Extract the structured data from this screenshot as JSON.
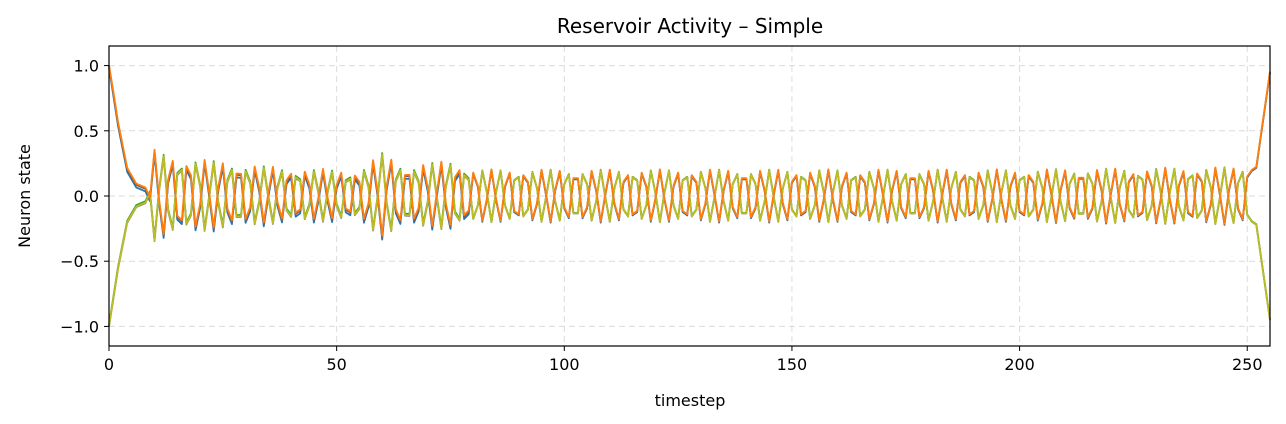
{
  "chart_data": {
    "type": "line",
    "title": "Reservoir Activity – Simple",
    "xlabel": "timestep",
    "ylabel": "Neuron state",
    "xlim": [
      0,
      255
    ],
    "ylim": [
      -1.15,
      1.15
    ],
    "xticks": [
      0,
      50,
      100,
      150,
      200,
      250
    ],
    "yticks": [
      1.0,
      0.5,
      0.0,
      -0.5,
      -1.0
    ],
    "ytick_labels": [
      "1.0",
      "0.5",
      "0.0",
      "−0.5",
      "−1.0"
    ],
    "grid": true,
    "grid_style": "dashed",
    "n_timesteps": 256,
    "series_colors": [
      "#1f77b4",
      "#8c564b",
      "#2ca02c",
      "#7f7f7f",
      "#bcbd22",
      "#ff7f0e"
    ],
    "series_phase": [
      1,
      1,
      -1,
      -1,
      -1,
      1
    ],
    "series_offset": [
      -0.015,
      0.005,
      0.01,
      -0.005,
      0.0,
      0.015
    ],
    "envelope": [
      [
        0,
        1.0
      ],
      [
        2,
        0.55
      ],
      [
        4,
        0.2
      ],
      [
        6,
        0.08
      ],
      [
        8,
        0.05
      ],
      [
        10,
        0.34
      ],
      [
        15,
        0.28
      ],
      [
        20,
        0.27
      ],
      [
        25,
        0.25
      ],
      [
        30,
        0.23
      ],
      [
        40,
        0.2
      ],
      [
        50,
        0.19
      ],
      [
        55,
        0.18
      ],
      [
        60,
        0.32
      ],
      [
        65,
        0.22
      ],
      [
        75,
        0.26
      ],
      [
        80,
        0.2
      ],
      [
        100,
        0.2
      ],
      [
        150,
        0.2
      ],
      [
        200,
        0.2
      ],
      [
        250,
        0.22
      ],
      [
        253,
        0.45
      ],
      [
        255,
        0.95
      ]
    ],
    "oscillation_period": 3.7
  }
}
